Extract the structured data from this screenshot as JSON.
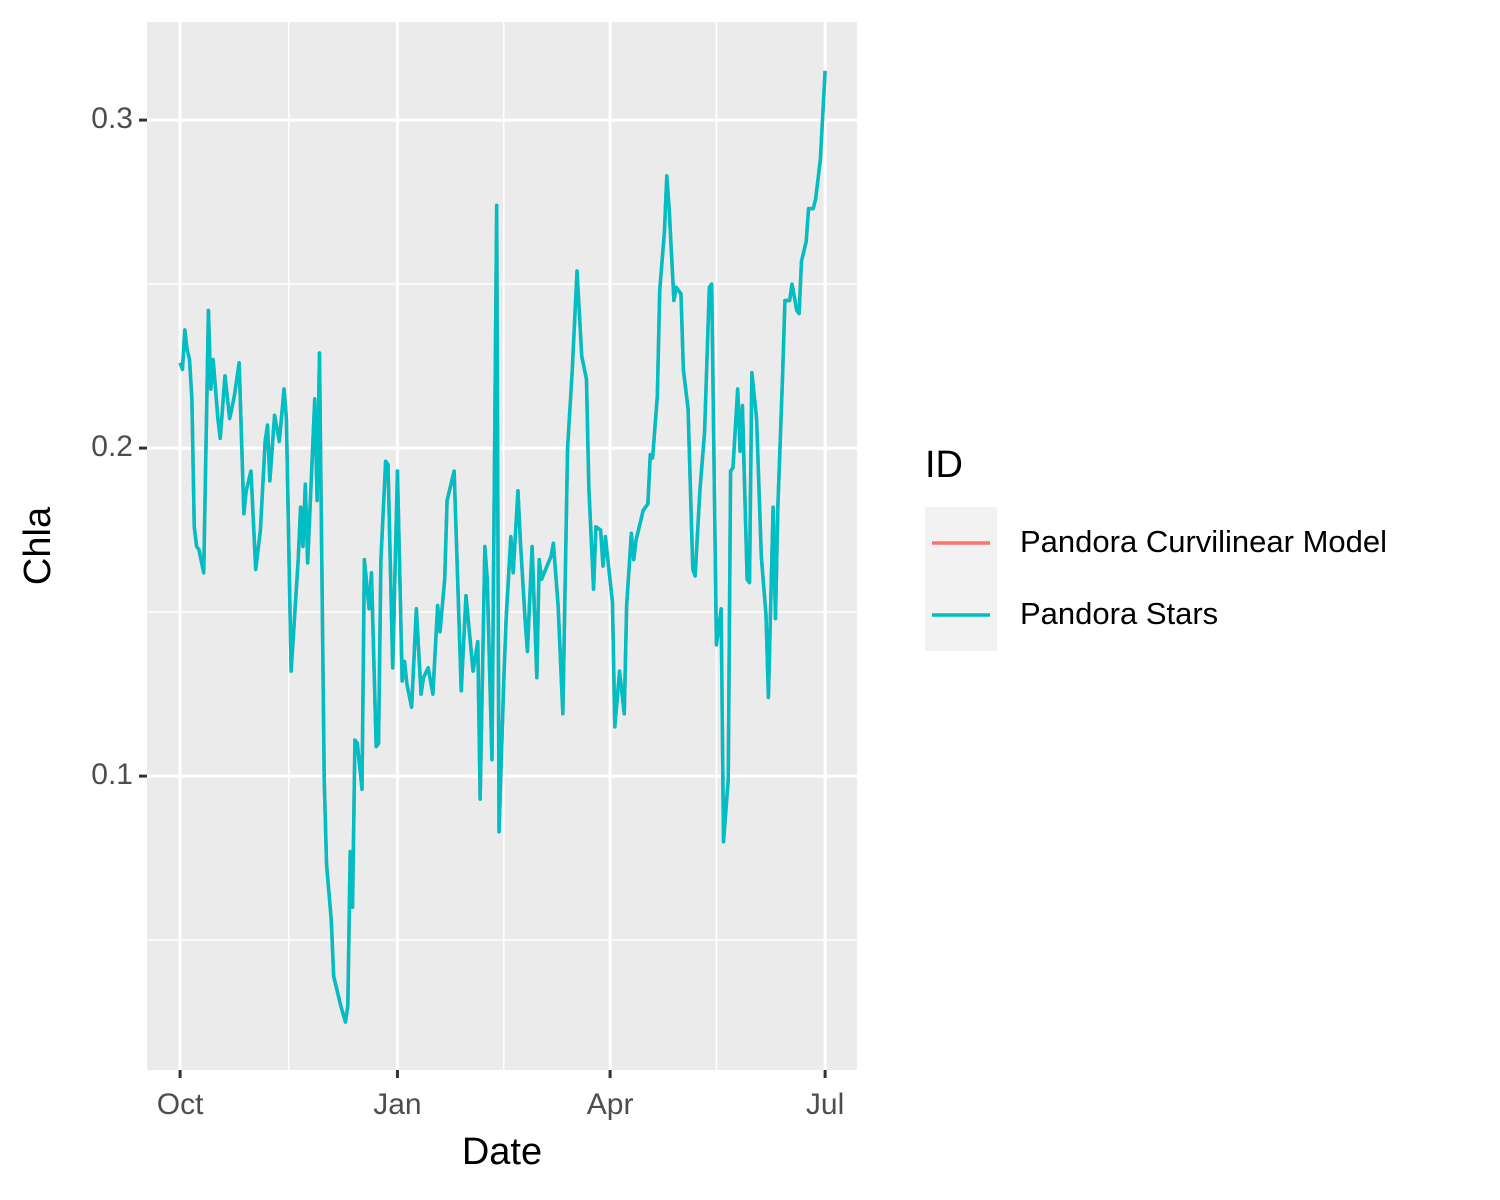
{
  "chart_data": {
    "type": "line",
    "x_label": "Date",
    "y_label": "Chla",
    "legend_title": "ID",
    "x": [
      0,
      1,
      2,
      3,
      4,
      5,
      6,
      7,
      8,
      10,
      12,
      13,
      14,
      16,
      17,
      19,
      21,
      23,
      25,
      27,
      28,
      30,
      32,
      34,
      36,
      37,
      38,
      40,
      42,
      44,
      45,
      47,
      50,
      51,
      52,
      53,
      54,
      57,
      58,
      59,
      61,
      62,
      64,
      65,
      68,
      70,
      71,
      72,
      73,
      74,
      75,
      77,
      78,
      80,
      81,
      83,
      84,
      85,
      87,
      88,
      90,
      92,
      94,
      95,
      96,
      98,
      100,
      102,
      103,
      105,
      107,
      109,
      110,
      112,
      113,
      116,
      119,
      121,
      124,
      126,
      127,
      129,
      130,
      132,
      134,
      135,
      137,
      138,
      140,
      141,
      143,
      144,
      146,
      147,
      149,
      151,
      152,
      153,
      157,
      158,
      160,
      162,
      164,
      166,
      168,
      170,
      172,
      173,
      175,
      176,
      178,
      179,
      180,
      183,
      184,
      186,
      188,
      189,
      191,
      192,
      193,
      196,
      198,
      199,
      200,
      202,
      203,
      205,
      206,
      207,
      209,
      210,
      212,
      213,
      215,
      217,
      218,
      220,
      222,
      224,
      225,
      227,
      229,
      230,
      232,
      233,
      234,
      236,
      237,
      238,
      240,
      241,
      242,
      244,
      246,
      248,
      249,
      251,
      252,
      253,
      255,
      256,
      258,
      259,
      261,
      262,
      263,
      265,
      266,
      268,
      269,
      271,
      273
    ],
    "series": [
      {
        "name": "Pandora Curvilinear Model",
        "color": "#f8766d",
        "values": [
          0.226,
          0.224,
          0.236,
          0.23,
          0.227,
          0.215,
          0.176,
          0.17,
          0.169,
          0.162,
          0.242,
          0.218,
          0.227,
          0.209,
          0.203,
          0.222,
          0.209,
          0.216,
          0.226,
          0.18,
          0.187,
          0.193,
          0.163,
          0.175,
          0.202,
          0.207,
          0.19,
          0.21,
          0.202,
          0.218,
          0.209,
          0.132,
          0.166,
          0.182,
          0.17,
          0.189,
          0.165,
          0.215,
          0.184,
          0.229,
          0.099,
          0.073,
          0.056,
          0.039,
          0.03,
          0.025,
          0.03,
          0.077,
          0.06,
          0.111,
          0.11,
          0.096,
          0.166,
          0.151,
          0.162,
          0.109,
          0.11,
          0.166,
          0.196,
          0.195,
          0.133,
          0.193,
          0.129,
          0.135,
          0.128,
          0.121,
          0.151,
          0.125,
          0.13,
          0.133,
          0.125,
          0.152,
          0.144,
          0.16,
          0.184,
          0.193,
          0.126,
          0.155,
          0.132,
          0.141,
          0.093,
          0.17,
          0.16,
          0.105,
          0.274,
          0.083,
          0.129,
          0.148,
          0.173,
          0.162,
          0.187,
          0.172,
          0.148,
          0.138,
          0.17,
          0.13,
          0.166,
          0.16,
          0.167,
          0.171,
          0.152,
          0.119,
          0.2,
          0.224,
          0.254,
          0.228,
          0.221,
          0.188,
          0.157,
          0.176,
          0.175,
          0.164,
          0.173,
          0.153,
          0.115,
          0.132,
          0.119,
          0.152,
          0.174,
          0.166,
          0.172,
          0.181,
          0.183,
          0.198,
          0.197,
          0.216,
          0.248,
          0.266,
          0.283,
          0.273,
          0.245,
          0.249,
          0.247,
          0.224,
          0.212,
          0.163,
          0.161,
          0.187,
          0.205,
          0.249,
          0.25,
          0.14,
          0.151,
          0.08,
          0.099,
          0.193,
          0.194,
          0.218,
          0.199,
          0.213,
          0.16,
          0.159,
          0.223,
          0.209,
          0.167,
          0.149,
          0.124,
          0.182,
          0.148,
          0.182,
          0.222,
          0.245,
          0.245,
          0.25,
          0.242,
          0.241,
          0.257,
          0.263,
          0.273,
          0.273,
          0.276,
          0.288,
          0.315
        ]
      },
      {
        "name": "Pandora Stars",
        "color": "#00bfc4",
        "values": [
          0.226,
          0.224,
          0.236,
          0.23,
          0.227,
          0.215,
          0.176,
          0.17,
          0.169,
          0.162,
          0.242,
          0.218,
          0.227,
          0.209,
          0.203,
          0.222,
          0.209,
          0.216,
          0.226,
          0.18,
          0.187,
          0.193,
          0.163,
          0.175,
          0.202,
          0.207,
          0.19,
          0.21,
          0.202,
          0.218,
          0.209,
          0.132,
          0.166,
          0.182,
          0.17,
          0.189,
          0.165,
          0.215,
          0.184,
          0.229,
          0.099,
          0.073,
          0.056,
          0.039,
          0.03,
          0.025,
          0.03,
          0.077,
          0.06,
          0.111,
          0.11,
          0.096,
          0.166,
          0.151,
          0.162,
          0.109,
          0.11,
          0.166,
          0.196,
          0.195,
          0.133,
          0.193,
          0.129,
          0.135,
          0.128,
          0.121,
          0.151,
          0.125,
          0.13,
          0.133,
          0.125,
          0.152,
          0.144,
          0.16,
          0.184,
          0.193,
          0.126,
          0.155,
          0.132,
          0.141,
          0.093,
          0.17,
          0.16,
          0.105,
          0.274,
          0.083,
          0.129,
          0.148,
          0.173,
          0.162,
          0.187,
          0.172,
          0.148,
          0.138,
          0.17,
          0.13,
          0.166,
          0.16,
          0.167,
          0.171,
          0.152,
          0.119,
          0.2,
          0.224,
          0.254,
          0.228,
          0.221,
          0.188,
          0.157,
          0.176,
          0.175,
          0.164,
          0.173,
          0.153,
          0.115,
          0.132,
          0.119,
          0.152,
          0.174,
          0.166,
          0.172,
          0.181,
          0.183,
          0.198,
          0.197,
          0.216,
          0.248,
          0.266,
          0.283,
          0.273,
          0.245,
          0.249,
          0.247,
          0.224,
          0.212,
          0.163,
          0.161,
          0.187,
          0.205,
          0.249,
          0.25,
          0.14,
          0.151,
          0.08,
          0.099,
          0.193,
          0.194,
          0.218,
          0.199,
          0.213,
          0.16,
          0.159,
          0.223,
          0.209,
          0.167,
          0.149,
          0.124,
          0.182,
          0.148,
          0.182,
          0.222,
          0.245,
          0.245,
          0.25,
          0.242,
          0.241,
          0.257,
          0.263,
          0.273,
          0.273,
          0.276,
          0.288,
          0.315
        ]
      }
    ],
    "xlim": [
      -14,
      286.5
    ],
    "xticks": [
      {
        "value": 0,
        "label": "Oct"
      },
      {
        "value": 92,
        "label": "Jan"
      },
      {
        "value": 182,
        "label": "Apr"
      },
      {
        "value": 273,
        "label": "Jul"
      }
    ],
    "xminorticks": [
      46,
      137,
      227
    ],
    "ylim": [
      0.0104,
      0.3299
    ],
    "yticks": [
      0.1,
      0.2,
      0.3
    ],
    "yminorticks": [
      0.05,
      0.15,
      0.25
    ],
    "grid": true,
    "legend": "right"
  }
}
